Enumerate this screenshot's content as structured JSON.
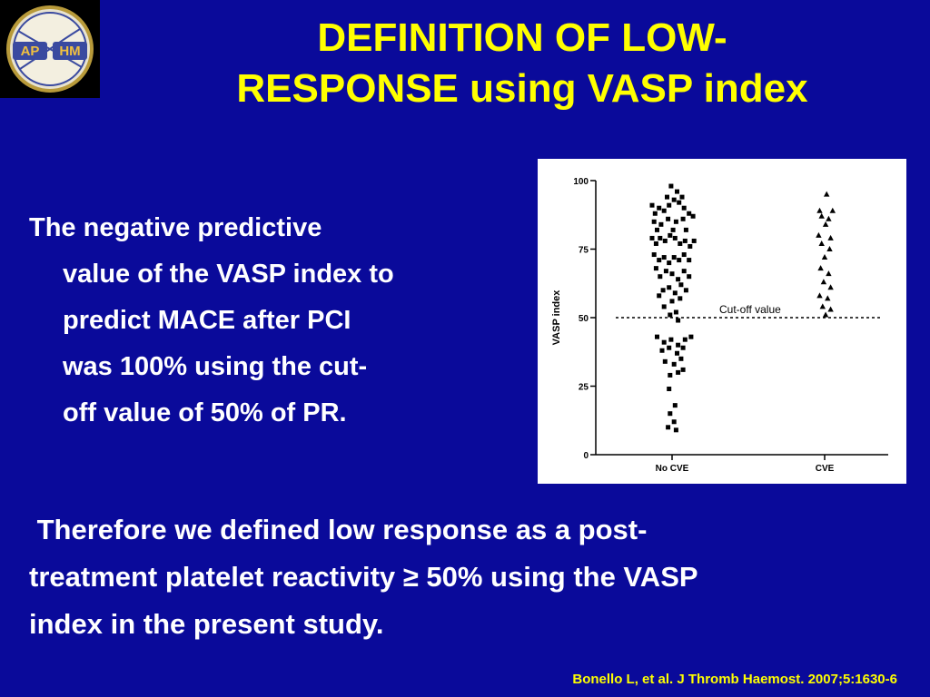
{
  "logo": {
    "text_left": "AP",
    "text_right": "HM"
  },
  "title": {
    "line1": "DEFINITION OF LOW-",
    "line2": "RESPONSE using VASP index"
  },
  "paragraph1": {
    "line1": "The negative predictive",
    "line2": "value of the VASP index to",
    "line3": "predict MACE after PCI",
    "line4": "was 100% using the cut-",
    "line5": "off value of 50% of PR."
  },
  "paragraph2": {
    "line1": " Therefore we defined low response as a post-",
    "line2": "treatment platelet reactivity ≥ 50% using the VASP",
    "line3": "index in the present study."
  },
  "citation": "Bonello L, et al. J Thromb Haemost. 2007;5:1630-6",
  "colors": {
    "background": "#0a0a9a",
    "title": "#ffff00",
    "text": "#ffffff",
    "citation": "#ffff00"
  },
  "chart_data": {
    "type": "scatter",
    "categories": [
      "No CVE",
      "CVE"
    ],
    "ylabel": "VASP index",
    "ylim": [
      0,
      100
    ],
    "yticks": [
      0,
      25,
      50,
      75,
      100
    ],
    "ytick_labels": [
      "0",
      "25",
      "50",
      "75",
      "100"
    ],
    "cutoff": {
      "value": 50,
      "label": "Cut-off value"
    },
    "series": [
      {
        "category": "No CVE",
        "marker": "square",
        "points": [
          [
            -0.2,
            91
          ],
          [
            -0.17,
            88
          ],
          [
            -0.13,
            90
          ],
          [
            -0.08,
            89
          ],
          [
            -0.03,
            91
          ],
          [
            0.02,
            93
          ],
          [
            0.07,
            92
          ],
          [
            0.12,
            90
          ],
          [
            0.17,
            88
          ],
          [
            0.21,
            87
          ],
          [
            -0.01,
            98
          ],
          [
            0.05,
            96
          ],
          [
            -0.05,
            94
          ],
          [
            0.1,
            94
          ],
          [
            -0.2,
            79
          ],
          [
            -0.16,
            77
          ],
          [
            -0.12,
            79
          ],
          [
            -0.07,
            78
          ],
          [
            -0.02,
            80
          ],
          [
            0.03,
            79
          ],
          [
            0.08,
            77
          ],
          [
            0.13,
            78
          ],
          [
            0.18,
            76
          ],
          [
            0.22,
            78
          ],
          [
            -0.18,
            85
          ],
          [
            -0.11,
            84
          ],
          [
            -0.04,
            86
          ],
          [
            0.04,
            85
          ],
          [
            0.11,
            86
          ],
          [
            -0.15,
            82
          ],
          [
            0.01,
            82
          ],
          [
            0.14,
            82
          ],
          [
            -0.13,
            71
          ],
          [
            -0.08,
            72
          ],
          [
            -0.03,
            70
          ],
          [
            0.02,
            72
          ],
          [
            0.07,
            71
          ],
          [
            0.12,
            73
          ],
          [
            0.17,
            71
          ],
          [
            -0.18,
            73
          ],
          [
            -0.12,
            65
          ],
          [
            -0.06,
            67
          ],
          [
            0.0,
            66
          ],
          [
            0.06,
            64
          ],
          [
            0.12,
            67
          ],
          [
            0.17,
            65
          ],
          [
            -0.16,
            68
          ],
          [
            -0.09,
            60
          ],
          [
            -0.03,
            61
          ],
          [
            0.03,
            59
          ],
          [
            0.09,
            62
          ],
          [
            0.14,
            60
          ],
          [
            -0.13,
            58
          ],
          [
            0.0,
            56
          ],
          [
            0.08,
            57
          ],
          [
            -0.08,
            54
          ],
          [
            0.04,
            52
          ],
          [
            -0.02,
            51
          ],
          [
            0.06,
            49
          ],
          [
            -0.15,
            43
          ],
          [
            -0.08,
            41
          ],
          [
            -0.01,
            42
          ],
          [
            0.06,
            40
          ],
          [
            0.13,
            42
          ],
          [
            0.19,
            43
          ],
          [
            -0.1,
            38
          ],
          [
            -0.03,
            39
          ],
          [
            0.05,
            37
          ],
          [
            0.11,
            39
          ],
          [
            -0.07,
            34
          ],
          [
            0.02,
            33
          ],
          [
            0.09,
            35
          ],
          [
            -0.02,
            29
          ],
          [
            0.06,
            30
          ],
          [
            0.11,
            31
          ],
          [
            -0.03,
            24
          ],
          [
            0.03,
            18
          ],
          [
            -0.02,
            15
          ],
          [
            0.02,
            12
          ],
          [
            -0.04,
            10
          ],
          [
            0.04,
            9
          ]
        ]
      },
      {
        "category": "CVE",
        "marker": "triangle",
        "points": [
          [
            0.02,
            95
          ],
          [
            -0.05,
            89
          ],
          [
            0.08,
            89
          ],
          [
            -0.03,
            87
          ],
          [
            0.04,
            86
          ],
          [
            0.01,
            84
          ],
          [
            -0.06,
            80
          ],
          [
            0.06,
            79
          ],
          [
            -0.03,
            77
          ],
          [
            0.05,
            75
          ],
          [
            0.0,
            72
          ],
          [
            -0.04,
            68
          ],
          [
            0.04,
            66
          ],
          [
            -0.01,
            63
          ],
          [
            0.06,
            61
          ],
          [
            -0.05,
            58
          ],
          [
            0.03,
            57
          ],
          [
            -0.02,
            54
          ],
          [
            0.06,
            53
          ],
          [
            0.01,
            51
          ]
        ]
      }
    ]
  }
}
